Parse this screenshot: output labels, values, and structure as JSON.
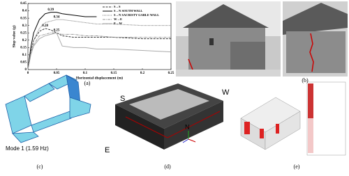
{
  "chart_data": {
    "type": "line",
    "ylabel": "Slop value (g)",
    "xlabel": "Horizontal displacement (m)",
    "x": [
      0,
      0.005,
      0.01,
      0.02,
      0.03,
      0.04,
      0.05,
      0.06,
      0.08,
      0.1,
      0.12,
      0.15,
      0.2,
      0.25
    ],
    "series": [
      {
        "name": "S→S",
        "color": "#333333",
        "dash": "3,1.5",
        "values": [
          0,
          0.12,
          0.2,
          0.26,
          0.28,
          0.27,
          0.25,
          0.23,
          0.22,
          0.22,
          0.22,
          0.22,
          0.21,
          0.21
        ]
      },
      {
        "name": "S→N SOUTH WALL",
        "color": "#000000",
        "dash": "none",
        "values": [
          0,
          0.15,
          0.25,
          0.34,
          0.38,
          0.39,
          0.39,
          0.38,
          0.37,
          0.36,
          0.36,
          null,
          null,
          null
        ]
      },
      {
        "name": "S→N SACRISTY GABLE WALL",
        "color": "#777777",
        "dash": "1,1",
        "values": [
          0,
          0.12,
          0.2,
          0.28,
          0.32,
          0.33,
          0.34,
          0.34,
          0.33,
          0.32,
          0.31,
          0.31,
          0.3,
          0.3
        ]
      },
      {
        "name": "W→E",
        "color": "#999999",
        "dash": "4,1,1,1",
        "values": [
          0,
          0.1,
          0.17,
          0.23,
          0.24,
          0.25,
          0.25,
          0.24,
          0.24,
          0.23,
          0.23,
          0.22,
          0.22,
          0.22
        ]
      },
      {
        "name": "E→W",
        "color": "#aaaaaa",
        "dash": "none",
        "values": [
          0,
          0.1,
          0.16,
          0.21,
          0.23,
          0.24,
          0.25,
          0.16,
          0.15,
          0.15,
          0.14,
          0.14,
          0.13,
          0.12
        ]
      }
    ],
    "annotations": [
      {
        "text": "0.39",
        "x": 0.04,
        "y": 0.39
      },
      {
        "text": "0.34",
        "x": 0.05,
        "y": 0.34
      },
      {
        "text": "0.28",
        "x": 0.03,
        "y": 0.28
      },
      {
        "text": "0.25",
        "x": 0.05,
        "y": 0.25
      }
    ],
    "xlim": [
      0,
      0.25
    ],
    "xticks": [
      0,
      0.05,
      0.1,
      0.15,
      0.2,
      0.25
    ],
    "ylim": [
      0,
      0.45
    ],
    "yticks": [
      0,
      0.05,
      0.1,
      0.15,
      0.2,
      0.25,
      0.3,
      0.35,
      0.4,
      0.45
    ],
    "legend": "upper right"
  },
  "panels": {
    "a": "(a)",
    "b": "(b)",
    "c": "(c)",
    "d": "(d)",
    "e": "(e)"
  },
  "labels": {
    "mode": "Mode 1 (1.59 Hz)",
    "s": "S",
    "w": "W",
    "e": "E",
    "n": "N"
  }
}
